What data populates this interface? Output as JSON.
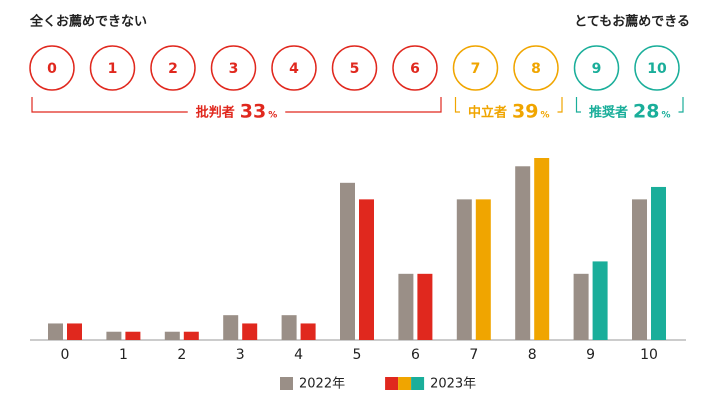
{
  "chart_data": {
    "type": "bar",
    "left_label": "全くお薦めできない",
    "right_label": "とてもお薦めできる",
    "categories": [
      "0",
      "1",
      "2",
      "3",
      "4",
      "5",
      "6",
      "7",
      "8",
      "9",
      "10"
    ],
    "series": [
      {
        "name": "2022年",
        "color": "#9a8f87",
        "values": [
          2,
          1,
          1,
          3,
          3,
          19,
          8,
          17,
          21,
          8,
          17
        ]
      },
      {
        "name": "2023年",
        "values": [
          2,
          1,
          1,
          2,
          2,
          17,
          8,
          17,
          22,
          9.5,
          18.5
        ]
      }
    ],
    "groups": [
      {
        "label": "批判者",
        "percent": 33,
        "unit": "%",
        "color": "#e0281e",
        "from": 0,
        "to": 6
      },
      {
        "label": "中立者",
        "percent": 39,
        "unit": "%",
        "color": "#f0a500",
        "from": 7,
        "to": 8
      },
      {
        "label": "推奨者",
        "percent": 28,
        "unit": "%",
        "color": "#1aae9a",
        "from": 9,
        "to": 10
      }
    ]
  }
}
